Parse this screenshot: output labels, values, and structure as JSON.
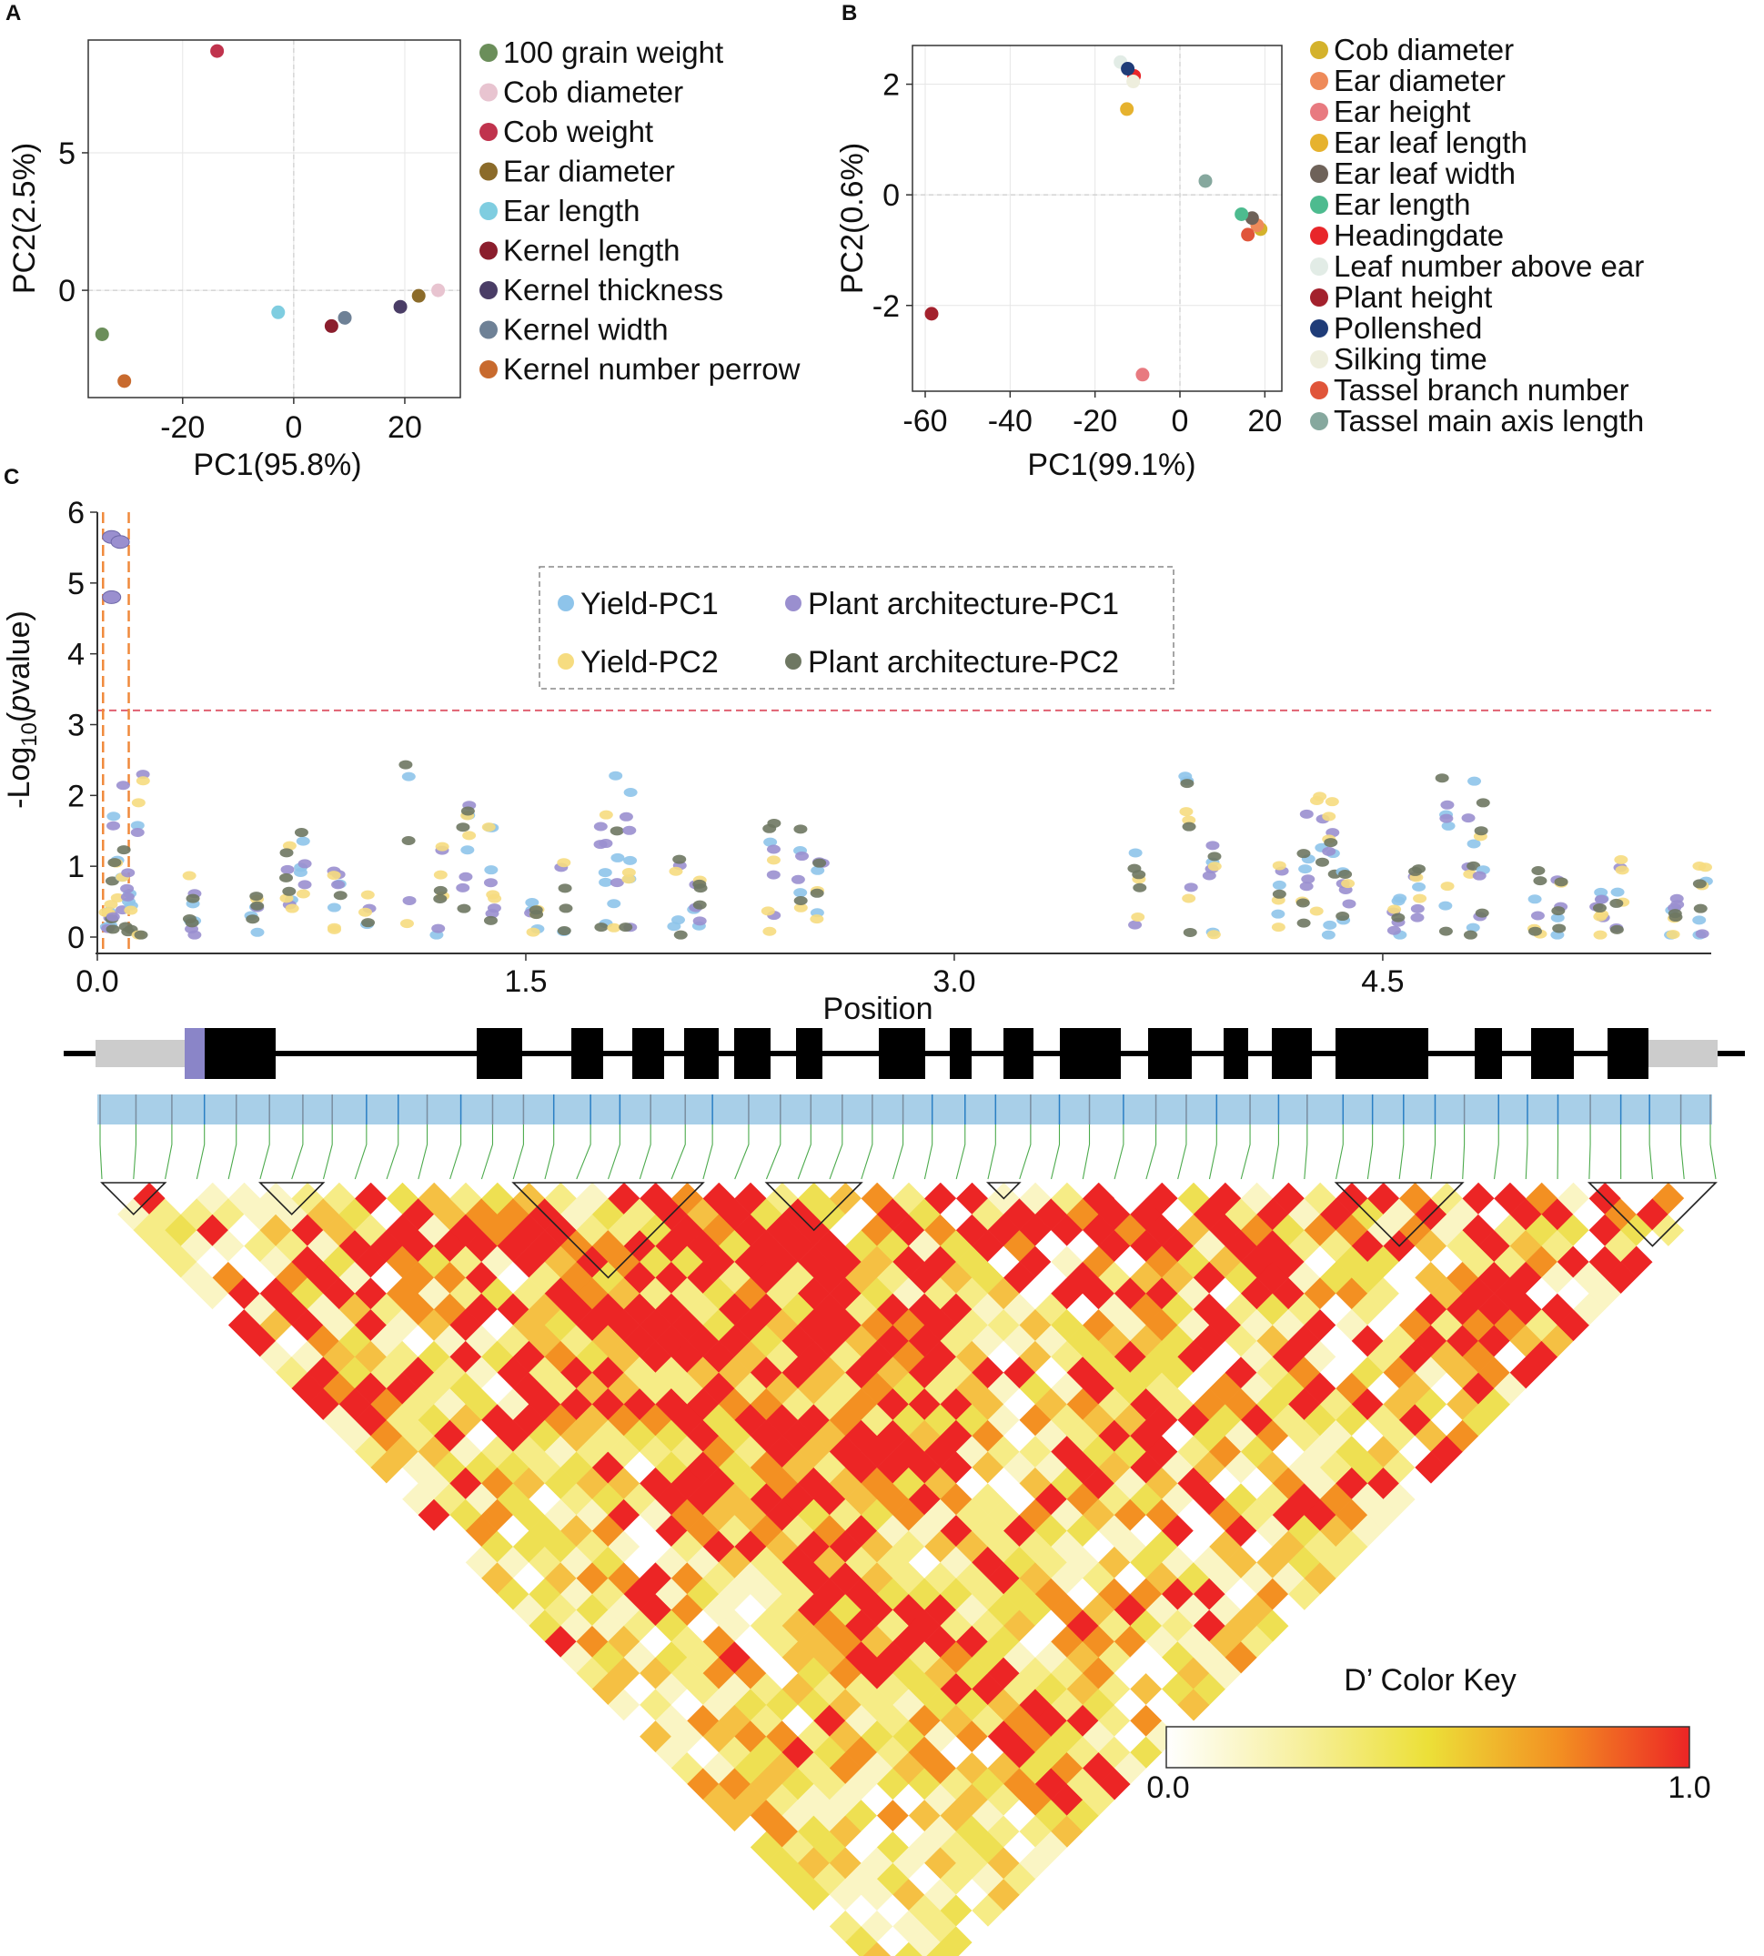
{
  "panels": {
    "A": {
      "letter": "A",
      "chart_data": {
        "type": "scatter",
        "xlabel": "PC1(95.8%)",
        "ylabel": "PC2(2.5%)",
        "xlim": [
          -37,
          30
        ],
        "ylim": [
          -3.9,
          9.1
        ],
        "xticks": [
          -20,
          0,
          20
        ],
        "yticks": [
          0,
          5
        ],
        "xtick_labels": [
          "-20",
          "0",
          "20"
        ],
        "ytick_labels": [
          "0",
          "5"
        ],
        "series": [
          {
            "name": "100 grain weight",
            "color": "#6b8e5a",
            "x": -34.5,
            "y": -1.6
          },
          {
            "name": "Cob diameter",
            "color": "#e8c4d0",
            "x": 26.0,
            "y": 0.0
          },
          {
            "name": "Cob weight",
            "color": "#c0334d",
            "x": -13.8,
            "y": 8.7
          },
          {
            "name": "Ear diameter",
            "color": "#8b6b2a",
            "x": 22.5,
            "y": -0.2
          },
          {
            "name": "Ear length",
            "color": "#7fcde0",
            "x": -2.8,
            "y": -0.8
          },
          {
            "name": "Kernel length",
            "color": "#8b1e2d",
            "x": 6.8,
            "y": -1.3
          },
          {
            "name": "Kernel thickness",
            "color": "#4a3d66",
            "x": 19.2,
            "y": -0.6
          },
          {
            "name": "Kernel width",
            "color": "#6e8196",
            "x": 9.2,
            "y": -1.0
          },
          {
            "name": "Kernel number perrow",
            "color": "#c86a2e",
            "x": -30.5,
            "y": -3.3
          }
        ]
      }
    },
    "B": {
      "letter": "B",
      "chart_data": {
        "type": "scatter",
        "xlabel": "PC1(99.1%)",
        "ylabel": "PC2(0.6%)",
        "xlim": [
          -63,
          24
        ],
        "ylim": [
          -3.55,
          2.7
        ],
        "xticks": [
          -60,
          -40,
          -20,
          0,
          20
        ],
        "yticks": [
          -2,
          0,
          2
        ],
        "xtick_labels": [
          "-60",
          "-40",
          "-20",
          "0",
          "20"
        ],
        "ytick_labels": [
          "-2",
          "0",
          "2"
        ],
        "series": [
          {
            "name": "Cob diameter",
            "color": "#d4b22c",
            "x": 19.0,
            "y": -0.62
          },
          {
            "name": "Ear diameter",
            "color": "#ee8a5a",
            "x": 18.2,
            "y": -0.55
          },
          {
            "name": "Ear height",
            "color": "#e87a80",
            "x": -8.8,
            "y": -3.25
          },
          {
            "name": "Ear leaf length",
            "color": "#e6b22e",
            "x": -12.5,
            "y": 1.55
          },
          {
            "name": "Ear leaf width",
            "color": "#6e6259",
            "x": 17.0,
            "y": -0.42
          },
          {
            "name": "Ear length",
            "color": "#4dbb8f",
            "x": 14.5,
            "y": -0.35
          },
          {
            "name": "Headingdate",
            "color": "#e8262a",
            "x": -10.8,
            "y": 2.15
          },
          {
            "name": "Leaf number above ear",
            "color": "#e2ece6",
            "x": -14.0,
            "y": 2.4
          },
          {
            "name": "Plant height",
            "color": "#a3212d",
            "x": -58.5,
            "y": -2.15
          },
          {
            "name": "Pollenshed",
            "color": "#1f3c78",
            "x": -12.3,
            "y": 2.28
          },
          {
            "name": "Silking time",
            "color": "#eeeedd",
            "x": -11.0,
            "y": 2.05
          },
          {
            "name": "Tassel branch number",
            "color": "#e0553a",
            "x": 16.0,
            "y": -0.72
          },
          {
            "name": "Tassel main axis length",
            "color": "#86a89e",
            "x": 6.0,
            "y": 0.25
          }
        ]
      }
    },
    "C": {
      "letter": "C",
      "chart_data": {
        "type": "scatter",
        "xlabel": "Position",
        "ylabel_prefix": "-Log",
        "ylabel_sub": "10",
        "ylabel_open": "(",
        "ylabel_italic": "p",
        "ylabel_rest": "value)",
        "xlim": [
          0,
          5.65
        ],
        "ylim": [
          0,
          6
        ],
        "xticks": [
          0,
          1.5,
          3,
          4.5
        ],
        "yticks": [
          0,
          1,
          2,
          3,
          4,
          5,
          6
        ],
        "xtick_labels": [
          "0.0",
          "1.5",
          "3.0",
          "4.5"
        ],
        "ytick_labels": [
          "0",
          "1",
          "2",
          "3",
          "4",
          "5",
          "6"
        ],
        "threshold": 3.2,
        "threshold_color": "#e06070",
        "highlight_lines": [
          0.02,
          0.11
        ],
        "highlight_color": "#f08a3c",
        "legend": [
          {
            "name": "Yield-PC1",
            "color": "#8ec4ea"
          },
          {
            "name": "Plant architecture-PC1",
            "color": "#9a8fcf"
          },
          {
            "name": "Yield-PC2",
            "color": "#f6dc80"
          },
          {
            "name": "Plant architecture-PC2",
            "color": "#6e7762"
          }
        ],
        "snp_positions": [
          0.04,
          0.06,
          0.09,
          0.11,
          0.15,
          0.33,
          0.55,
          0.67,
          0.72,
          0.84,
          0.94,
          1.09,
          1.2,
          1.29,
          1.38,
          1.53,
          1.63,
          1.77,
          1.82,
          1.86,
          2.03,
          2.1,
          2.36,
          2.46,
          2.53,
          3.64,
          3.82,
          3.9,
          4.14,
          4.23,
          4.28,
          4.32,
          4.37,
          4.55,
          4.62,
          4.72,
          4.81,
          4.85,
          5.04,
          5.12,
          5.26,
          5.33,
          5.52,
          5.62
        ],
        "top_hits": {
          "series": "Plant architecture-PC1",
          "x": [
            0.05,
            0.08,
            0.05
          ],
          "y": [
            5.65,
            5.58,
            4.8
          ]
        },
        "ld_key": {
          "title": "D’ Color Key",
          "min_label": "0.0",
          "max_label": "1.0"
        }
      }
    }
  }
}
